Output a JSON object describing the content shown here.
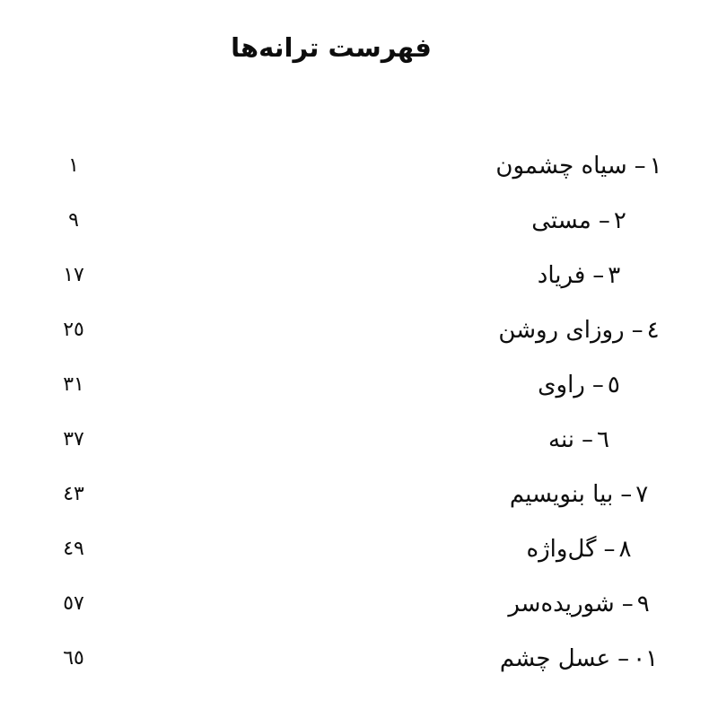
{
  "page": {
    "title": "فهرست ترانه‌ها",
    "separator": "–",
    "items": [
      {
        "num": "۱",
        "title": "سیاه چشمون",
        "page": "۱"
      },
      {
        "num": "۲",
        "title": "مستی",
        "page": "۹"
      },
      {
        "num": "۳",
        "title": "فریاد",
        "page": "۱۷"
      },
      {
        "num": "٤",
        "title": "روزای روشن",
        "page": "۲٥"
      },
      {
        "num": "٥",
        "title": "راوی",
        "page": "۳۱"
      },
      {
        "num": "٦",
        "title": "ننه",
        "page": "۳۷"
      },
      {
        "num": "۷",
        "title": "بیا بنویسیم",
        "page": "٤۳"
      },
      {
        "num": "۸",
        "title": "گل‌واژه",
        "page": "٤۹"
      },
      {
        "num": "۹",
        "title": "شوریده‌سر",
        "page": "٥۷"
      },
      {
        "num": "۱۰",
        "title": "عسل چشم",
        "page": "٦٥"
      }
    ],
    "colors": {
      "background": "#ffffff",
      "text": "#0d0d0d"
    }
  }
}
